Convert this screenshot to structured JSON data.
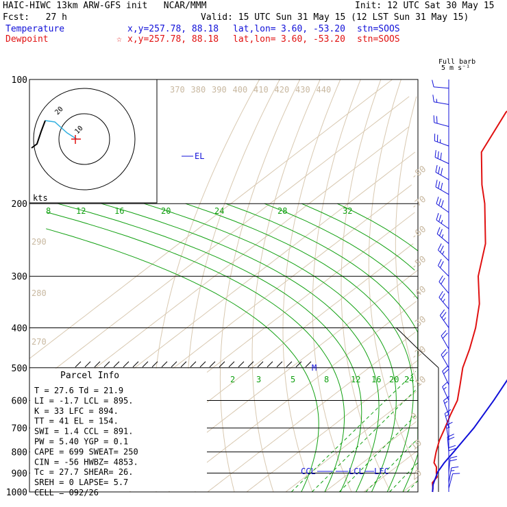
{
  "header": {
    "title": "HAIC-HIWC 13km ARW-GFS init   NCAR/MMM",
    "init": "Init: 12 UTC Sat 30 May 15",
    "fcst": "Fcst:   27 h",
    "valid": "Valid: 15 UTC Sun 31 May 15 (12 LST Sun 31 May 15)",
    "temperature_label": "Temperature",
    "dewpoint_label": "Dewpoint",
    "temp_xy": "x,y=257.78, 88.18",
    "dew_xy": "x,y=257.78, 88.18",
    "dew_marker": "☆",
    "latlon_label": "lat,lon=",
    "latlon_value": "3.60, -53.20",
    "stn": "stn=SOOS"
  },
  "barb_legend": {
    "line1": "Full barb",
    "line2": "5 m s⁻¹"
  },
  "hodograph": {
    "units": "kts",
    "ring_label": "20",
    "inner_label": "10"
  },
  "parcel_info": {
    "title": "Parcel Info",
    "rows": [
      "T  =    27.6  Td =   21.9",
      "LI =    -1.7  LCL =  895.",
      "K  =      33  LFC =  894.",
      "TT =      41  EL  =  154.",
      "SWI =    1.4  CCL =  891.",
      "PW =   5.40  YGP =    0.1",
      "CAPE =   699  SWEAT=  250",
      "CIN =    -56  HWBZ= 4853.",
      "Tc =   27.7  SHEAR=  26.",
      "SREH =     0  LAPSE=  5.7",
      "CELL = 092/26"
    ]
  },
  "level_labels": {
    "el": "EL",
    "ccl": "CCL",
    "lcl": "LCL",
    "lfc": "LFC",
    "m": "M"
  },
  "colors": {
    "temperature": "#e01010",
    "dewpoint": "#e01010",
    "parcel": "#1010d8",
    "isotherm": "#d8c8b0",
    "mixing_ratio": "#10a010",
    "isobar": "#000000"
  },
  "chart_data": {
    "type": "line",
    "title": "",
    "ylabel": "",
    "y_scale": "log-pressure",
    "pressure_levels": [
      100,
      200,
      300,
      400,
      500,
      600,
      700,
      800,
      900,
      1000
    ],
    "pressure_tick_labels": [
      "100",
      "200",
      "300",
      "400",
      "500",
      "600",
      "700",
      "800",
      "900",
      "1000"
    ],
    "isotherm_labels": [
      "-80",
      "-70",
      "-60",
      "-50",
      "-40",
      "-30",
      "-20",
      "-10",
      "0",
      "10",
      "20",
      "30",
      "40"
    ],
    "theta_labels": [
      "370",
      "380",
      "390",
      "400",
      "410",
      "420",
      "430",
      "440",
      "290",
      "280",
      "270"
    ],
    "mixing_ratio_labels_upper": [
      "8",
      "12",
      "16",
      "20",
      "24",
      "28",
      "32"
    ],
    "mixing_ratio_labels_lower": [
      "2",
      "3",
      "5",
      "8",
      "12",
      "16",
      "20",
      "24"
    ],
    "series": [
      {
        "name": "Temperature",
        "points": [
          [
            1000,
            27.6
          ],
          [
            980,
            26.5
          ],
          [
            950,
            24.5
          ],
          [
            920,
            23.8
          ],
          [
            900,
            22.3
          ],
          [
            870,
            20.3
          ],
          [
            850,
            18.3
          ],
          [
            800,
            15.2
          ],
          [
            750,
            12.2
          ],
          [
            700,
            9.5
          ],
          [
            650,
            6.5
          ],
          [
            600,
            3.5
          ],
          [
            550,
            -1.0
          ],
          [
            500,
            -6.0
          ],
          [
            450,
            -10.5
          ],
          [
            400,
            -16.0
          ],
          [
            350,
            -23.0
          ],
          [
            300,
            -32.5
          ],
          [
            250,
            -41.5
          ],
          [
            200,
            -55.0
          ],
          [
            180,
            -62.0
          ],
          [
            150,
            -73.0
          ],
          [
            120,
            -80.0
          ],
          [
            100,
            -81.0
          ]
        ]
      },
      {
        "name": "Dewpoint",
        "points": [
          [
            1000,
            21.9
          ],
          [
            950,
            21.0
          ],
          [
            900,
            20.5
          ],
          [
            850,
            17.5
          ],
          [
            800,
            12.5
          ],
          [
            700,
            1.0
          ],
          [
            600,
            -6.0
          ],
          [
            500,
            -18.0
          ],
          [
            400,
            -30.0
          ],
          [
            300,
            -50.0
          ],
          [
            200,
            -70.0
          ],
          [
            100,
            -90.0
          ]
        ]
      },
      {
        "name": "Parcel",
        "points": [
          [
            1000,
            27.6
          ],
          [
            960,
            25.3
          ],
          [
            895,
            22.3
          ],
          [
            850,
            20.9
          ],
          [
            800,
            19.7
          ],
          [
            700,
            16.9
          ],
          [
            600,
            12.8
          ],
          [
            500,
            7.5
          ],
          [
            400,
            -1.5
          ],
          [
            300,
            -14.0
          ],
          [
            250,
            -23.0
          ],
          [
            200,
            -33.0
          ],
          [
            154,
            -46.0
          ],
          [
            130,
            -53.0
          ],
          [
            100,
            -62.0
          ]
        ]
      }
    ],
    "wind_barbs": [
      {
        "p": 105,
        "dir": 275,
        "spd": 10
      },
      {
        "p": 115,
        "dir": 280,
        "spd": 15
      },
      {
        "p": 130,
        "dir": 285,
        "spd": 20
      },
      {
        "p": 145,
        "dir": 290,
        "spd": 25
      },
      {
        "p": 160,
        "dir": 295,
        "spd": 30
      },
      {
        "p": 175,
        "dir": 300,
        "spd": 30
      },
      {
        "p": 190,
        "dir": 300,
        "spd": 30
      },
      {
        "p": 210,
        "dir": 305,
        "spd": 30
      },
      {
        "p": 230,
        "dir": 305,
        "spd": 25
      },
      {
        "p": 250,
        "dir": 310,
        "spd": 25
      },
      {
        "p": 275,
        "dir": 315,
        "spd": 25
      },
      {
        "p": 300,
        "dir": 315,
        "spd": 20
      },
      {
        "p": 330,
        "dir": 320,
        "spd": 20
      },
      {
        "p": 360,
        "dir": 320,
        "spd": 25
      },
      {
        "p": 400,
        "dir": 325,
        "spd": 25
      },
      {
        "p": 450,
        "dir": 330,
        "spd": 20
      },
      {
        "p": 500,
        "dir": 330,
        "spd": 20
      },
      {
        "p": 550,
        "dir": 335,
        "spd": 20
      },
      {
        "p": 600,
        "dir": 335,
        "spd": 15
      },
      {
        "p": 650,
        "dir": 340,
        "spd": 15
      },
      {
        "p": 700,
        "dir": 345,
        "spd": 15
      },
      {
        "p": 750,
        "dir": 350,
        "spd": 15
      },
      {
        "p": 800,
        "dir": 355,
        "spd": 20
      },
      {
        "p": 850,
        "dir": 360,
        "spd": 20
      },
      {
        "p": 900,
        "dir": 5,
        "spd": 20
      },
      {
        "p": 950,
        "dir": 10,
        "spd": 15
      },
      {
        "p": 980,
        "dir": 15,
        "spd": 10
      }
    ],
    "hodograph_points_kts": [
      [
        -6,
        -2
      ],
      [
        -8,
        4
      ],
      [
        -4,
        8
      ],
      [
        2,
        10
      ],
      [
        8,
        12
      ],
      [
        14,
        18
      ],
      [
        18,
        22
      ]
    ]
  }
}
